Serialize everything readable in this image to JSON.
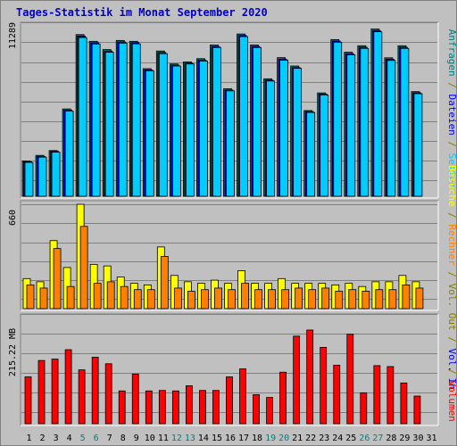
{
  "title": "Tages-Statistik im Monat September 2020",
  "colors": {
    "background": "#c0c0c0",
    "title": "#0000cc",
    "anfragen": "#008080",
    "dateien": "#0000ff",
    "seiten": "#00ccff",
    "besuche": "#ffff00",
    "rechner": "#ff8000",
    "vol_out": "#808000",
    "vol_in": "#0000ff",
    "volumen": "#ff0000",
    "weekend": "#008080"
  },
  "chart_data": [
    {
      "type": "bar",
      "panel": "top",
      "y_max_label": "11289",
      "ymax": 11289,
      "categories": [
        "1",
        "2",
        "3",
        "4",
        "5",
        "6",
        "7",
        "8",
        "9",
        "10",
        "11",
        "12",
        "13",
        "14",
        "15",
        "16",
        "17",
        "18",
        "19",
        "20",
        "21",
        "22",
        "23",
        "24",
        "25",
        "26",
        "27",
        "28",
        "29",
        "30",
        "31"
      ],
      "series": [
        {
          "name": "Anfragen",
          "values": [
            2400,
            2780,
            3110,
            5940,
            11000,
            10540,
            9980,
            10600,
            10540,
            8680,
            9880,
            9000,
            9140,
            9360,
            10290,
            7310,
            11040,
            10290,
            7990,
            9430,
            8860,
            5830,
            7030,
            10660,
            9800,
            10240,
            11380,
            9420,
            10240,
            7120,
            null
          ]
        },
        {
          "name": "Dateien",
          "values": [
            2350,
            2710,
            3050,
            5860,
            10900,
            10440,
            9880,
            10500,
            10450,
            8600,
            9780,
            8920,
            9060,
            9270,
            10190,
            7230,
            10940,
            10190,
            7900,
            9330,
            8760,
            5760,
            6950,
            10560,
            9700,
            10140,
            11270,
            9320,
            10140,
            7040,
            null
          ]
        },
        {
          "name": "Seiten",
          "values": [
            2300,
            2660,
            3000,
            5800,
            10800,
            10360,
            9800,
            10420,
            10370,
            8540,
            9700,
            8860,
            9000,
            9200,
            10120,
            7170,
            10860,
            10120,
            7840,
            9260,
            8700,
            5700,
            6890,
            10480,
            9620,
            10060,
            11190,
            9240,
            10060,
            6980,
            null
          ]
        }
      ],
      "legend": [
        "Seiten",
        "Dateien",
        "Anfragen"
      ]
    },
    {
      "type": "bar",
      "panel": "middle",
      "y_max_label": "660",
      "ymax": 660,
      "categories": [
        "1",
        "2",
        "3",
        "4",
        "5",
        "6",
        "7",
        "8",
        "9",
        "10",
        "11",
        "12",
        "13",
        "14",
        "15",
        "16",
        "17",
        "18",
        "19",
        "20",
        "21",
        "22",
        "23",
        "24",
        "25",
        "26",
        "27",
        "28",
        "29",
        "30",
        "31"
      ],
      "series": [
        {
          "name": "Besuche",
          "values": [
            190,
            170,
            430,
            260,
            660,
            280,
            270,
            200,
            160,
            150,
            390,
            210,
            170,
            160,
            180,
            160,
            240,
            160,
            160,
            190,
            160,
            160,
            160,
            150,
            160,
            140,
            170,
            170,
            210,
            170,
            null
          ]
        },
        {
          "name": "Rechner",
          "values": [
            150,
            130,
            380,
            140,
            520,
            160,
            170,
            140,
            120,
            120,
            330,
            130,
            110,
            120,
            130,
            120,
            160,
            120,
            120,
            120,
            130,
            120,
            130,
            110,
            120,
            110,
            120,
            120,
            150,
            130,
            null
          ]
        }
      ],
      "legend": [
        "Besuche",
        "Rechner",
        "Vol. Out",
        "Vol. In"
      ]
    },
    {
      "type": "bar",
      "panel": "bottom",
      "y_max_label": "215.22 MB",
      "ymax": 215.22,
      "categories": [
        "1",
        "2",
        "3",
        "4",
        "5",
        "6",
        "7",
        "8",
        "9",
        "10",
        "11",
        "12",
        "13",
        "14",
        "15",
        "16",
        "17",
        "18",
        "19",
        "20",
        "21",
        "22",
        "23",
        "24",
        "25",
        "26",
        "27",
        "28",
        "29",
        "30",
        "31"
      ],
      "series": [
        {
          "name": "Volumen",
          "values": [
            100,
            135,
            138,
            158,
            115,
            142,
            128,
            70,
            106,
            70,
            71,
            70,
            81,
            71,
            71,
            100,
            117,
            62,
            56,
            110,
            187,
            200,
            163,
            125,
            191,
            66,
            124,
            122,
            87,
            59,
            null
          ]
        }
      ],
      "legend": [
        "Volumen"
      ]
    }
  ],
  "x_labels": [
    {
      "label": "1",
      "weekend": false
    },
    {
      "label": "2",
      "weekend": false
    },
    {
      "label": "3",
      "weekend": false
    },
    {
      "label": "4",
      "weekend": false
    },
    {
      "label": "5",
      "weekend": true
    },
    {
      "label": "6",
      "weekend": true
    },
    {
      "label": "7",
      "weekend": false
    },
    {
      "label": "8",
      "weekend": false
    },
    {
      "label": "9",
      "weekend": false
    },
    {
      "label": "10",
      "weekend": false
    },
    {
      "label": "11",
      "weekend": false
    },
    {
      "label": "12",
      "weekend": true
    },
    {
      "label": "13",
      "weekend": true
    },
    {
      "label": "14",
      "weekend": false
    },
    {
      "label": "15",
      "weekend": false
    },
    {
      "label": "16",
      "weekend": false
    },
    {
      "label": "17",
      "weekend": false
    },
    {
      "label": "18",
      "weekend": false
    },
    {
      "label": "19",
      "weekend": true
    },
    {
      "label": "20",
      "weekend": true
    },
    {
      "label": "21",
      "weekend": false
    },
    {
      "label": "22",
      "weekend": false
    },
    {
      "label": "23",
      "weekend": false
    },
    {
      "label": "24",
      "weekend": false
    },
    {
      "label": "25",
      "weekend": false
    },
    {
      "label": "26",
      "weekend": true
    },
    {
      "label": "27",
      "weekend": true
    },
    {
      "label": "28",
      "weekend": false
    },
    {
      "label": "29",
      "weekend": false
    },
    {
      "label": "30",
      "weekend": false
    },
    {
      "label": "31",
      "weekend": false
    }
  ],
  "right_legend_top": [
    {
      "text": "Anfragen",
      "color": "anfragen"
    },
    {
      "text": "/",
      "color": "vol_out"
    },
    {
      "text": "Dateien",
      "color": "dateien"
    },
    {
      "text": "/",
      "color": "vol_out"
    },
    {
      "text": "Seiten",
      "color": "seiten"
    }
  ],
  "right_legend_middle": [
    {
      "text": "Besuche",
      "color": "besuche"
    },
    {
      "text": "/",
      "color": "vol_out"
    },
    {
      "text": "Rechner",
      "color": "rechner"
    },
    {
      "text": "/",
      "color": "vol_out"
    },
    {
      "text": "Vol. Out",
      "color": "vol_out"
    },
    {
      "text": "/",
      "color": "vol_out"
    },
    {
      "text": "Vol. In",
      "color": "vol_in"
    }
  ],
  "right_legend_bottom": [
    {
      "text": "/",
      "color": "vol_out"
    },
    {
      "text": "Volumen",
      "color": "volumen"
    }
  ]
}
